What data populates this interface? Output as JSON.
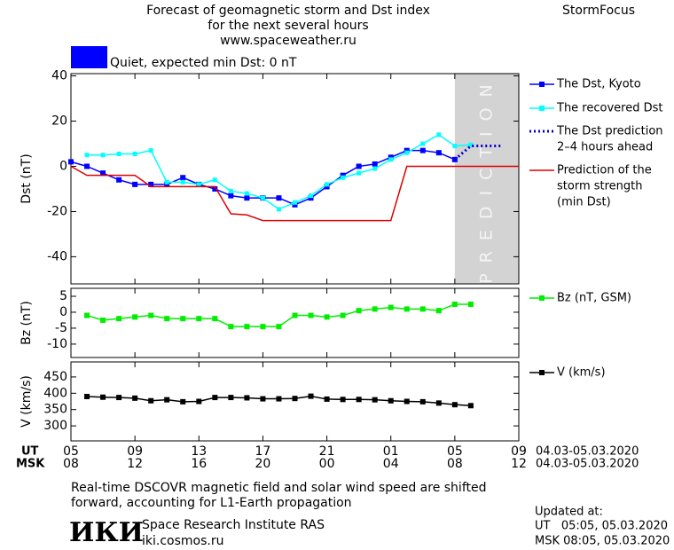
{
  "header": {
    "title": [
      "Forecast of geomagnetic storm and Dst index",
      "for the next several hours",
      "www.spaceweather.ru"
    ],
    "brand": "StormFocus"
  },
  "status": {
    "text": "Quiet, expected min Dst: 0 nT",
    "color": "#0000ff"
  },
  "chart_data": [
    {
      "type": "line",
      "axis_label": "Dst (nT)",
      "xlim": [
        0,
        28
      ],
      "ylim": [
        -52,
        41
      ],
      "yticks": [
        -40,
        -20,
        0,
        20,
        40
      ],
      "shade": {
        "xlim": [
          24,
          28
        ],
        "label": "PREDICTION",
        "color": "#d3d3d3"
      },
      "series": [
        {
          "name": [
            "The Dst, Kyoto"
          ],
          "color": "#0000ff",
          "marker": true,
          "x": [
            0,
            1,
            2,
            3,
            4,
            5,
            6,
            7,
            8,
            9,
            10,
            11,
            12,
            13,
            14,
            15,
            16,
            17,
            18,
            19,
            20,
            21,
            22,
            23,
            24
          ],
          "values": [
            2,
            0,
            -3,
            -6,
            -8,
            -8,
            -8,
            -5,
            -8,
            -10,
            -13,
            -14,
            -14,
            -14,
            -17,
            -14,
            -9,
            -4,
            0,
            1,
            4,
            7,
            7,
            6,
            3
          ]
        },
        {
          "name": [
            "The recovered Dst"
          ],
          "color": "#00ffff",
          "marker": true,
          "x": [
            1,
            2,
            3,
            4,
            5,
            6,
            7,
            8,
            9,
            10,
            11,
            12,
            13,
            14,
            15,
            16,
            17,
            18,
            19,
            20,
            21,
            22,
            23,
            24,
            25
          ],
          "values": [
            5,
            5,
            5.5,
            5.5,
            7,
            -7,
            -7,
            -8,
            -6,
            -11,
            -12,
            -14,
            -19,
            -16,
            -13,
            -8,
            -5,
            -3,
            -1,
            3,
            6,
            10,
            14,
            9,
            9.5
          ]
        },
        {
          "name": [
            "The Dst prediction",
            "2–4 hours ahead"
          ],
          "color": "#0000cc",
          "dotted": true,
          "x": [
            24,
            25,
            26,
            27
          ],
          "values": [
            3,
            9,
            9,
            9
          ]
        },
        {
          "name": [
            "Prediction of the",
            "storm strength",
            "(min Dst)"
          ],
          "color": "#dd0000",
          "x": [
            0,
            1,
            2,
            3,
            4,
            5,
            6,
            7,
            8,
            9,
            10,
            11,
            12,
            13,
            14,
            15,
            16,
            17,
            18,
            19,
            20,
            21,
            22,
            23,
            24,
            25,
            26,
            27,
            28
          ],
          "values": [
            0,
            -4,
            -4,
            -4,
            -4,
            -9,
            -9,
            -9,
            -9,
            -9,
            -21,
            -21.5,
            -24,
            -24,
            -24,
            -24,
            -24,
            -24,
            -24,
            -24,
            -24,
            0,
            0,
            0,
            0,
            0,
            0,
            0,
            0
          ]
        }
      ]
    },
    {
      "type": "line",
      "axis_label": "Bz (nT)",
      "xlim": [
        0,
        28
      ],
      "ylim": [
        -14.2,
        7.5
      ],
      "yticks": [
        -10,
        -5,
        0,
        5
      ],
      "series": [
        {
          "name": [
            "Bz (nT, GSM)"
          ],
          "color": "#00ee00",
          "marker": true,
          "x": [
            1,
            2,
            3,
            4,
            5,
            6,
            7,
            8,
            9,
            10,
            11,
            12,
            13,
            14,
            15,
            16,
            17,
            18,
            19,
            20,
            21,
            22,
            23,
            24,
            25
          ],
          "values": [
            -1,
            -2.5,
            -2,
            -1.5,
            -1,
            -2,
            -2,
            -2,
            -2,
            -4.5,
            -4.5,
            -4.5,
            -4.5,
            -1,
            -1,
            -1.5,
            -1,
            0.5,
            1,
            1.5,
            1,
            1,
            0.5,
            2.5,
            2.5
          ]
        }
      ]
    },
    {
      "type": "line",
      "axis_label": "V (km/s)",
      "xlim": [
        0,
        28
      ],
      "ylim": [
        254,
        496
      ],
      "yticks": [
        300,
        350,
        400,
        450
      ],
      "xticks": [
        {
          "value": 0,
          "label": "05"
        },
        {
          "value": 4,
          "label": "09"
        },
        {
          "value": 8,
          "label": "13"
        },
        {
          "value": 12,
          "label": "17"
        },
        {
          "value": 16,
          "label": "21"
        },
        {
          "value": 20,
          "label": "01"
        },
        {
          "value": 24,
          "label": "05"
        },
        {
          "value": 28,
          "label": "09"
        }
      ],
      "x2ticks": [
        {
          "value": 0,
          "label": "08"
        },
        {
          "value": 4,
          "label": "12"
        },
        {
          "value": 8,
          "label": "16"
        },
        {
          "value": 12,
          "label": "20"
        },
        {
          "value": 16,
          "label": "00"
        },
        {
          "value": 20,
          "label": "04"
        },
        {
          "value": 24,
          "label": "08"
        },
        {
          "value": 28,
          "label": "12"
        }
      ],
      "xaxis_label": "UT",
      "x2axis_label": "MSK",
      "date_range": "04.03-05.03.2020",
      "series": [
        {
          "name": [
            "V (km/s)"
          ],
          "color": "#000000",
          "marker": true,
          "x": [
            1,
            2,
            3,
            4,
            5,
            6,
            7,
            8,
            9,
            10,
            11,
            12,
            13,
            14,
            15,
            16,
            17,
            18,
            19,
            20,
            21,
            22,
            23,
            24,
            25
          ],
          "values": [
            390,
            388,
            387,
            385,
            377,
            380,
            374,
            375,
            387,
            387,
            386,
            383,
            383,
            384,
            391,
            382,
            381,
            381,
            380,
            377,
            375,
            374,
            370,
            365,
            362
          ]
        }
      ]
    }
  ],
  "note": [
    "Real-time DSCOVR magnetic field and solar wind speed are shifted",
    "forward, accounting for L1-Earth propagation"
  ],
  "footer": {
    "logo": "ИКИ",
    "institute": "Space Research Institute RAS",
    "site": "iki.cosmos.ru",
    "updated": [
      "Updated at:",
      "UT   05:05, 05.03.2020",
      "MSK 08:05, 05.03.2020"
    ]
  }
}
